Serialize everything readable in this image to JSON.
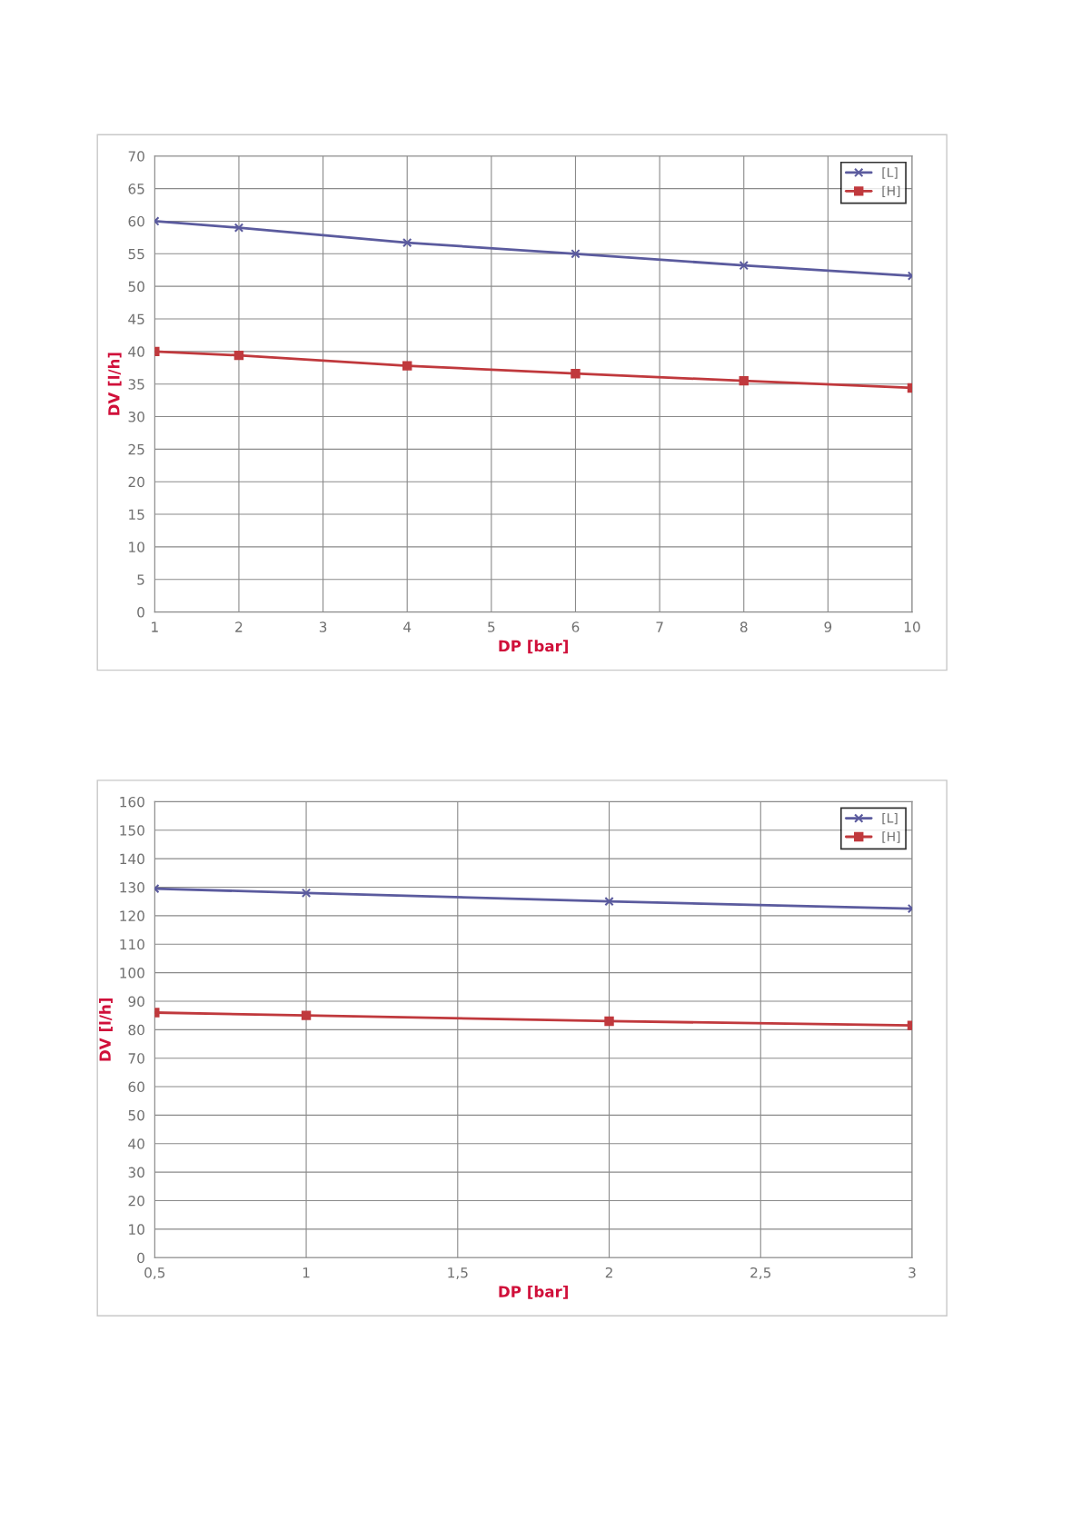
{
  "chart_data": [
    {
      "type": "line",
      "xlabel": "DP [bar]",
      "ylabel": "DV [l/h]",
      "xlim": [
        1,
        10
      ],
      "xticks": [
        1,
        2,
        3,
        4,
        5,
        6,
        7,
        8,
        9,
        10
      ],
      "ylim": [
        0,
        70
      ],
      "yticks": [
        0,
        5,
        10,
        15,
        20,
        25,
        30,
        35,
        40,
        45,
        50,
        55,
        60,
        65,
        70
      ],
      "grid": true,
      "legend": "top right",
      "series": [
        {
          "name": "[L]",
          "color": "#5b5b9e",
          "marker": "cross",
          "x": [
            1,
            2,
            4,
            6,
            8,
            10
          ],
          "values": [
            60,
            59,
            56.7,
            55,
            53.2,
            51.6
          ]
        },
        {
          "name": "[H]",
          "color": "#c0393d",
          "marker": "square",
          "x": [
            1,
            2,
            4,
            6,
            8,
            10
          ],
          "values": [
            40,
            39.4,
            37.8,
            36.6,
            35.5,
            34.4
          ]
        }
      ]
    },
    {
      "type": "line",
      "xlabel": "DP [bar]",
      "ylabel": "DV [l/h]",
      "xlim": [
        0.5,
        3
      ],
      "xticks": [
        {
          "value": 0.5,
          "label": "0,5"
        },
        1,
        {
          "value": 1.5,
          "label": "1,5"
        },
        2,
        {
          "value": 2.5,
          "label": "2,5"
        },
        3
      ],
      "ylim": [
        0,
        160
      ],
      "yticks": [
        0,
        10,
        20,
        30,
        40,
        50,
        60,
        70,
        80,
        90,
        100,
        110,
        120,
        130,
        140,
        150,
        160
      ],
      "grid": true,
      "legend": "top right",
      "series": [
        {
          "name": "[L]",
          "color": "#5b5b9e",
          "marker": "cross",
          "x": [
            0.5,
            1,
            2,
            3
          ],
          "values": [
            129.5,
            128,
            125,
            122.5
          ]
        },
        {
          "name": "[H]",
          "color": "#c0393d",
          "marker": "square",
          "x": [
            0.5,
            1,
            2,
            3
          ],
          "values": [
            86,
            85,
            83,
            81.5
          ]
        }
      ]
    }
  ]
}
